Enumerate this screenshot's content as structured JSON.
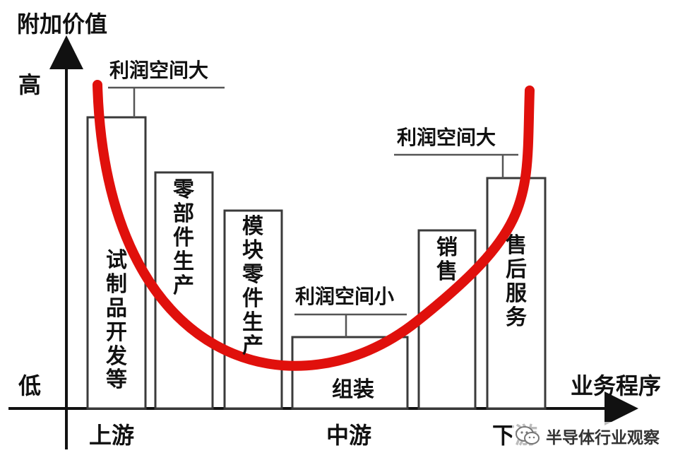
{
  "axes": {
    "y_title": "附加价值",
    "y_high": "高",
    "y_low": "低",
    "x_title": "业务程序"
  },
  "stages": {
    "upstream": "上游",
    "midstream": "中游",
    "downstream": "下游"
  },
  "profit_labels": {
    "left": "利润空间大",
    "middle": "利润空间小",
    "right": "利润空间大"
  },
  "bars": [
    {
      "label": "试制品开发等"
    },
    {
      "label": "零部件生产"
    },
    {
      "label": "模块零件生产"
    },
    {
      "label": "组装"
    },
    {
      "label": "销售"
    },
    {
      "label": "售后服务"
    }
  ],
  "watermark": {
    "text": "半导体行业观察",
    "icon": "wechat-icon"
  },
  "colors": {
    "curve": "#e0100c",
    "bar_stroke": "#3a3a3a",
    "text": "#111111"
  }
}
